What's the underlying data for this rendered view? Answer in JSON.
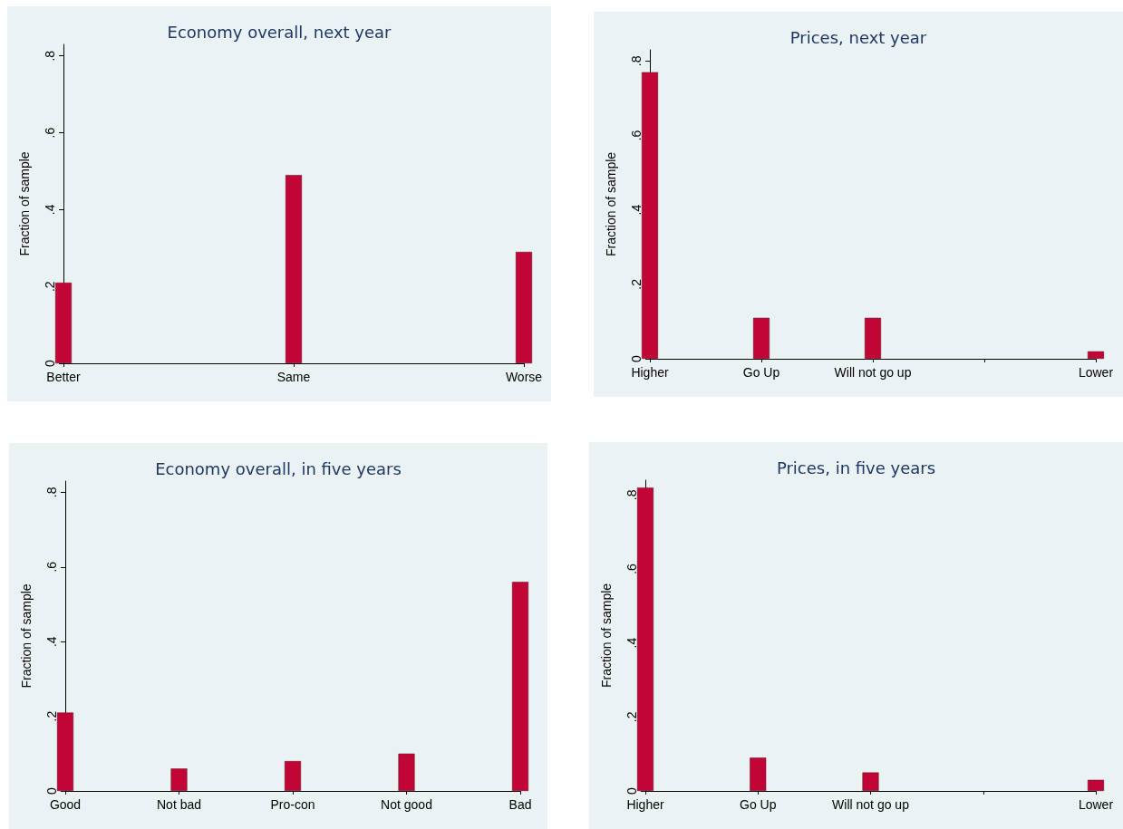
{
  "chart_data": [
    {
      "type": "bar",
      "title": "Economy overall, next year",
      "ylabel": "Fraction of sample",
      "categories": [
        "Better",
        "Same",
        "Worse"
      ],
      "values": [
        0.21,
        0.49,
        0.29
      ],
      "color": "#c10534",
      "ylim": [
        0,
        0.83
      ],
      "yticks": [
        {
          "value": 0,
          "label": "0"
        },
        {
          "value": 0.2,
          "label": ".2"
        },
        {
          "value": 0.4,
          "label": ".4"
        },
        {
          "value": 0.6,
          "label": ".6"
        },
        {
          "value": 0.8,
          "label": ".8"
        }
      ]
    },
    {
      "type": "bar",
      "title": "Prices, next year",
      "ylabel": "Fraction of sample",
      "categories": [
        "Higher",
        "Go Up",
        "Will not go up",
        null,
        "Lower"
      ],
      "values": [
        0.77,
        0.11,
        0.11,
        null,
        0.02
      ],
      "color": "#c10534",
      "ylim": [
        0,
        0.83
      ],
      "yticks": [
        {
          "value": 0,
          "label": "0"
        },
        {
          "value": 0.2,
          "label": ".2"
        },
        {
          "value": 0.4,
          "label": ".4"
        },
        {
          "value": 0.6,
          "label": ".6"
        },
        {
          "value": 0.8,
          "label": ".8"
        }
      ]
    },
    {
      "type": "bar",
      "title": "Economy overall, in five years",
      "ylabel": "Fraction of sample",
      "categories": [
        "Good",
        "Not bad",
        "Pro-con",
        "Not good",
        "Bad"
      ],
      "values": [
        0.21,
        0.06,
        0.08,
        0.1,
        0.56
      ],
      "color": "#c10534",
      "ylim": [
        0,
        0.83
      ],
      "yticks": [
        {
          "value": 0,
          "label": "0"
        },
        {
          "value": 0.2,
          "label": ".2"
        },
        {
          "value": 0.4,
          "label": ".4"
        },
        {
          "value": 0.6,
          "label": ".6"
        },
        {
          "value": 0.8,
          "label": ".8"
        }
      ]
    },
    {
      "type": "bar",
      "title": "Prices, in five years",
      "ylabel": "Fraction of sample",
      "categories": [
        "Higher",
        "Go Up",
        "Will not go up",
        null,
        "Lower"
      ],
      "values": [
        0.82,
        0.09,
        0.05,
        null,
        0.03
      ],
      "color": "#c10534",
      "ylim": [
        0,
        0.84
      ],
      "yticks": [
        {
          "value": 0,
          "label": "0"
        },
        {
          "value": 0.2,
          "label": ".2"
        },
        {
          "value": 0.4,
          "label": ".4"
        },
        {
          "value": 0.6,
          "label": ".6"
        },
        {
          "value": 0.8,
          "label": ".8"
        }
      ]
    }
  ]
}
